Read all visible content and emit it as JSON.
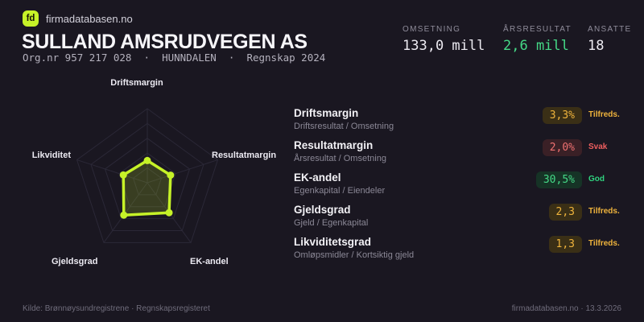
{
  "brand": {
    "logo_text": "fd",
    "name": "firmadatabasen.no"
  },
  "header": {
    "title": "SULLAND AMSRUDVEGEN AS",
    "subtitle": "Org.nr 957 217 028  ·  HUNNDALEN  ·  Regnskap 2024",
    "stats": [
      {
        "label": "OMSETNING",
        "value": "133,0 mill",
        "tone": "neutral"
      },
      {
        "label": "ÅRSRESULTAT",
        "value": "2,6 mill",
        "tone": "good"
      },
      {
        "label": "ANSATTE",
        "value": "18",
        "tone": "neutral"
      }
    ]
  },
  "colors": {
    "accent": "#c6f228",
    "good": "#45d987",
    "warn": "#f0b43c",
    "bad": "#f07171"
  },
  "chart_data": {
    "type": "radar",
    "title": "",
    "categories": [
      "Driftsmargin",
      "Resultatmargin",
      "EK-andel",
      "Gjeldsgrad",
      "Likviditet"
    ],
    "values": [
      "3,3%",
      "2,0%",
      "30,5%",
      "2,3",
      "1,3"
    ],
    "normalized": [
      0.3,
      0.33,
      0.5,
      0.54,
      0.34
    ],
    "grid_levels": 5,
    "axis_range": [
      0,
      1
    ],
    "legend": "none",
    "stroke_color": "#c6f228",
    "fill_opacity": 0.18,
    "grid_color": "#2b2837",
    "dot_radius": 4.5
  },
  "metrics": [
    {
      "title": "Driftsmargin",
      "formula": "Driftsresultat / Omsetning",
      "value": "3,3%",
      "status": "Tilfreds.",
      "tone": "warn"
    },
    {
      "title": "Resultatmargin",
      "formula": "Årsresultat / Omsetning",
      "value": "2,0%",
      "status": "Svak",
      "tone": "bad"
    },
    {
      "title": "EK-andel",
      "formula": "Egenkapital / Eiendeler",
      "value": "30,5%",
      "status": "God",
      "tone": "good"
    },
    {
      "title": "Gjeldsgrad",
      "formula": "Gjeld / Egenkapital",
      "value": "2,3",
      "status": "Tilfreds.",
      "tone": "warn"
    },
    {
      "title": "Likviditetsgrad",
      "formula": "Omløpsmidler / Kortsiktig gjeld",
      "value": "1,3",
      "status": "Tilfreds.",
      "tone": "warn"
    }
  ],
  "footer": {
    "left": "Kilde: Brønnøysundregistrene · Regnskapsregisteret",
    "right": "firmadatabasen.no · 13.3.2026"
  }
}
